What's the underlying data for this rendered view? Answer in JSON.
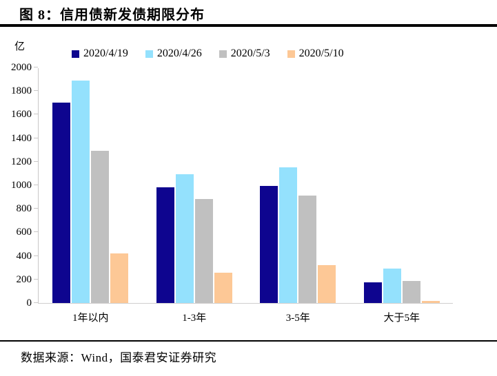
{
  "page": {
    "title": "图 8：信用债新发债期限分布",
    "footer": "数据来源：Wind，国泰君安证券研究"
  },
  "chart_data": {
    "type": "bar",
    "title": "信用债新发债期限分布",
    "unit_label": "亿",
    "xlabel": "",
    "ylabel": "亿",
    "ylim": [
      0,
      2000
    ],
    "ytick_step": 200,
    "grid": false,
    "legend_position": "top",
    "axis_color": "#c9c7c7",
    "categories": [
      "1年以内",
      "1-3年",
      "3-5年",
      "大于5年"
    ],
    "series": [
      {
        "name": "2020/4/19",
        "color": "#0e058f",
        "values": [
          1700,
          980,
          995,
          175
        ]
      },
      {
        "name": "2020/4/26",
        "color": "#94e1fd",
        "values": [
          1890,
          1095,
          1150,
          290
        ]
      },
      {
        "name": "2020/5/3",
        "color": "#c0c0c0",
        "values": [
          1295,
          885,
          910,
          185
        ]
      },
      {
        "name": "2020/5/10",
        "color": "#fdc896",
        "values": [
          420,
          260,
          320,
          20
        ]
      }
    ]
  }
}
